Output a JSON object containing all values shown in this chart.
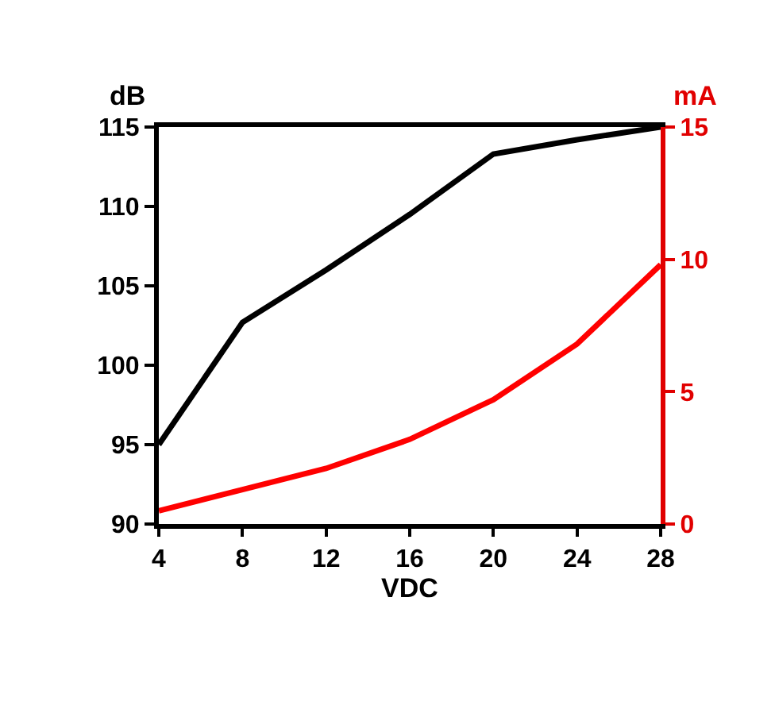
{
  "chart_data": {
    "type": "line",
    "xlabel": "VDC",
    "ylabel": "dB",
    "y2label": "mA",
    "x": [
      4,
      8,
      12,
      16,
      20,
      24,
      28
    ],
    "series": [
      {
        "color": "#000000",
        "values": [
          95,
          102.7,
          106,
          109.5,
          113.3,
          114.2,
          115
        ]
      },
      {
        "color": "#ff0000",
        "axis": "y2",
        "values": [
          0.5,
          1.3,
          2.1,
          3.2,
          4.7,
          6.8,
          9.8
        ]
      }
    ],
    "xlim": [
      4,
      28
    ],
    "xticks": [
      4,
      8,
      12,
      16,
      20,
      24,
      28
    ],
    "ylim": [
      90,
      115
    ],
    "yticks": [
      90,
      95,
      100,
      105,
      110,
      115
    ],
    "y2lim": [
      0,
      15
    ],
    "y2ticks": [
      0,
      5,
      10,
      15
    ],
    "marker": "none",
    "line_style": "solid"
  }
}
